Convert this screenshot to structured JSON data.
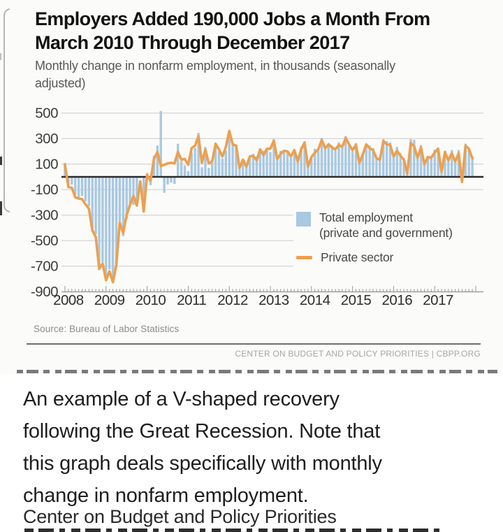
{
  "chart_card": {
    "title_lines": [
      "Employers Added 190,000 Jobs a Month From",
      "March 2010 Through December 2017"
    ],
    "subtitle_lines": [
      "Monthly change in nonfarm employment, in thousands (seasonally",
      "adjusted)"
    ],
    "legend": {
      "total_label_lines": [
        "Total employment",
        "(private and government)"
      ],
      "private_label": "Private sector"
    },
    "source": "Source: Bureau of Labor Statistics",
    "footer": "CENTER ON BUDGET AND POLICY PRIORITIES | CBPP.ORG",
    "colors": {
      "bar": "#a9c8e1",
      "line": "#eca04f",
      "grid": "#d4d4d4",
      "zero_line": "#2b2b2b",
      "axis_text": "#3d3d3d",
      "tick": "#999999"
    }
  },
  "chart_data": {
    "type": "bar",
    "title": "Employers Added 190,000 Jobs a Month From March 2010 Through December 2017",
    "subtitle": "Monthly change in nonfarm employment, in thousands (seasonally adjusted)",
    "x_frequency": "monthly",
    "x_start": "2008-01",
    "x_end": "2017-12",
    "categories_years": [
      "2008",
      "2009",
      "2010",
      "2011",
      "2012",
      "2013",
      "2014",
      "2015",
      "2016",
      "2017"
    ],
    "ylim": [
      -900,
      520
    ],
    "yticks": [
      500,
      300,
      100,
      -100,
      -300,
      -500,
      -700,
      -900
    ],
    "zero_baseline": true,
    "grid": true,
    "legend_position": "inside-right",
    "series": [
      {
        "name": "Total employment (private and government)",
        "render": "bar",
        "color": "#a9c8e1",
        "values": [
          110,
          -60,
          -60,
          -140,
          -160,
          -150,
          -190,
          -230,
          -410,
          -450,
          -730,
          -670,
          -780,
          -725,
          -800,
          -680,
          -355,
          -465,
          -330,
          -215,
          -220,
          -200,
          -10,
          -280,
          30,
          -65,
          165,
          245,
          516,
          -125,
          -60,
          -45,
          -55,
          260,
          125,
          90,
          45,
          190,
          225,
          345,
          75,
          235,
          70,
          110,
          245,
          200,
          145,
          205,
          340,
          255,
          240,
          75,
          115,
          85,
          145,
          180,
          160,
          225,
          205,
          215,
          195,
          280,
          140,
          205,
          200,
          200,
          150,
          200,
          165,
          235,
          275,
          85,
          145,
          220,
          205,
          305,
          230,
          265,
          245,
          205,
          270,
          245,
          320,
          255,
          200,
          265,
          120,
          185,
          260,
          245,
          225,
          150,
          150,
          295,
          280,
          270,
          170,
          235,
          185,
          145,
          45,
          295,
          290,
          175,
          250,
          125,
          165,
          155,
          215,
          230,
          50,
          205,
          145,
          210,
          140,
          210,
          20,
          260,
          215,
          160
        ]
      },
      {
        "name": "Private sector",
        "render": "line",
        "color": "#eca04f",
        "values": [
          95,
          -80,
          -85,
          -160,
          -170,
          -175,
          -215,
          -250,
          -420,
          -470,
          -720,
          -680,
          -810,
          -740,
          -825,
          -690,
          -360,
          -440,
          -300,
          -220,
          -150,
          -225,
          -35,
          -270,
          15,
          -30,
          140,
          195,
          85,
          95,
          105,
          110,
          105,
          195,
          135,
          140,
          95,
          225,
          245,
          320,
          110,
          215,
          105,
          120,
          260,
          215,
          160,
          235,
          360,
          255,
          245,
          70,
          135,
          80,
          160,
          165,
          130,
          215,
          170,
          220,
          220,
          285,
          140,
          180,
          205,
          200,
          160,
          210,
          120,
          215,
          270,
          80,
          155,
          190,
          215,
          290,
          225,
          255,
          230,
          215,
          250,
          235,
          305,
          255,
          210,
          250,
          110,
          175,
          255,
          225,
          210,
          145,
          135,
          280,
          255,
          250,
          160,
          205,
          165,
          135,
          25,
          265,
          240,
          150,
          230,
          100,
          155,
          150,
          190,
          220,
          40,
          195,
          130,
          185,
          120,
          185,
          -40,
          245,
          220,
          145
        ]
      }
    ]
  },
  "caption": {
    "lines": [
      "An example of a V-shaped recovery",
      "following the Great Recession. Note that",
      "this graph deals specifically with monthly",
      "change in nonfarm employment."
    ],
    "attribution": "Center on Budget and Policy Priorities"
  }
}
